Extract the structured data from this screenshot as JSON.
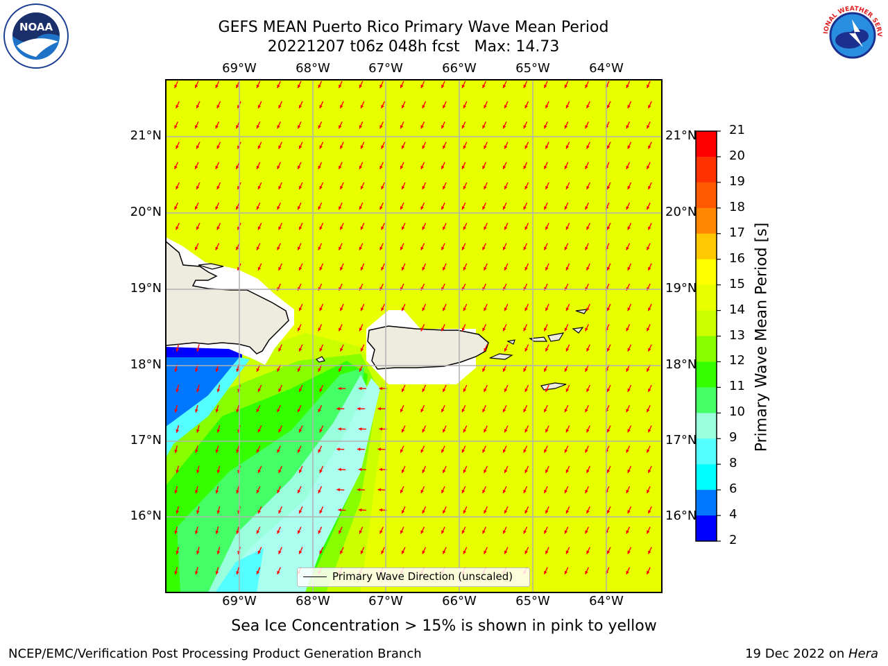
{
  "header": {
    "title_line1": "GEFS MEAN Puerto Rico Primary Wave Mean Period",
    "title_line2": "20221207 t06z 048h fcst   Max: 14.73"
  },
  "logos": {
    "left": {
      "icon": "noaa-logo",
      "text": "NOAA"
    },
    "right": {
      "icon": "national-weather-service-logo",
      "text": "NATIONAL WEATHER SERVICE"
    }
  },
  "map": {
    "lon_labels": [
      "69°W",
      "68°W",
      "67°W",
      "66°W",
      "65°W",
      "64°W"
    ],
    "lat_labels": [
      "21°N",
      "20°N",
      "19°N",
      "18°N",
      "17°N",
      "16°N"
    ],
    "legend_label": "Primary Wave Direction (unscaled)",
    "background_color": "#e8ff00",
    "arrow_color": "#ff0000",
    "land_color": "#eeecde"
  },
  "colorbar": {
    "label": "Primary Wave Mean Period [s]",
    "ticks": [
      "21",
      "20",
      "19",
      "18",
      "17",
      "16",
      "15",
      "14",
      "13",
      "12",
      "11",
      "10",
      "9",
      "8",
      "6",
      "4",
      "2"
    ],
    "colors": [
      "#ff0000",
      "#ff3300",
      "#ff5a00",
      "#ff8800",
      "#ffc800",
      "#ffff00",
      "#e8ff00",
      "#ccff00",
      "#88ff00",
      "#33ff00",
      "#44ff66",
      "#99ffdd",
      "#55ffff",
      "#00ffff",
      "#0077ff",
      "#0000ff"
    ]
  },
  "notes": {
    "sea_ice": "Sea Ice Concentration > 15% is shown in pink to yellow"
  },
  "footer": {
    "left": "NCEP/EMC/Verification Post Processing Product Generation Branch",
    "right_prefix": "19 Dec 2022 on ",
    "right_host": "Hera"
  }
}
